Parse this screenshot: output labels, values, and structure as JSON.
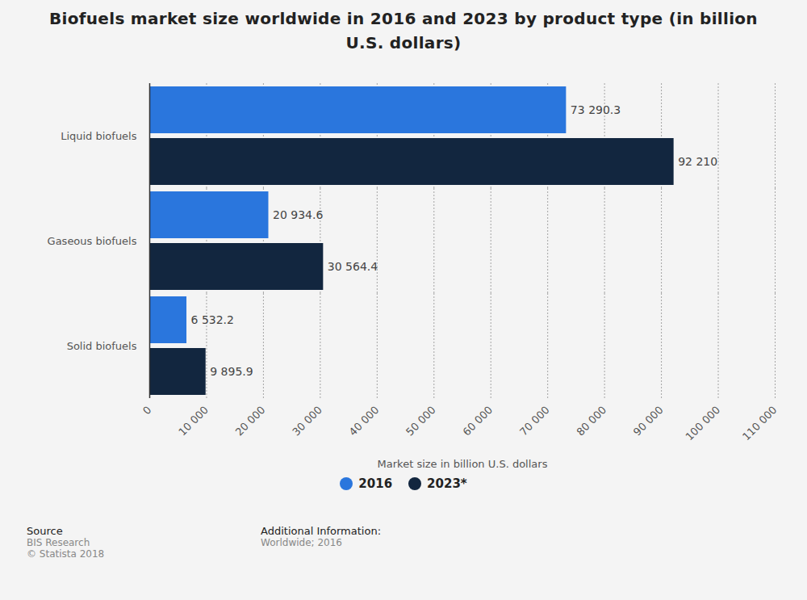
{
  "chart_data": {
    "type": "bar",
    "orientation": "horizontal",
    "title": "Biofuels market size worldwide in 2016 and 2023 by product type (in billion U.S. dollars)",
    "categories": [
      "Liquid biofuels",
      "Gaseous biofuels",
      "Solid biofuels"
    ],
    "series": [
      {
        "name": "2016",
        "color": "#2a76dd",
        "values": [
          73290.3,
          20934.6,
          6532.2
        ],
        "value_labels": [
          "73 290.3",
          "20 934.6",
          "6 532.2"
        ]
      },
      {
        "name": "2023*",
        "color": "#12263f",
        "values": [
          92210,
          30564.4,
          9895.9
        ],
        "value_labels": [
          "92 210",
          "30 564.4",
          "9 895.9"
        ]
      }
    ],
    "xlabel": "Market size in billion U.S. dollars",
    "xlim": [
      0,
      110000
    ],
    "xticks": [
      0,
      {
        "value": 10000,
        "label": "10 000"
      },
      {
        "value": 20000,
        "label": "20 000"
      },
      {
        "value": 30000,
        "label": "30 000"
      },
      {
        "value": 40000,
        "label": "40 000"
      },
      {
        "value": 50000,
        "label": "50 000"
      },
      {
        "value": 60000,
        "label": "60 000"
      },
      {
        "value": 70000,
        "label": "70 000"
      },
      {
        "value": 80000,
        "label": "80 000"
      },
      {
        "value": 90000,
        "label": "90 000"
      },
      {
        "value": 100000,
        "label": "100 000"
      },
      {
        "value": 110000,
        "label": "110 000"
      }
    ],
    "grid": true,
    "data_labels": true,
    "legend": "bottom",
    "source": {
      "heading": "Source",
      "lines": [
        "BIS Research",
        "© Statista 2018"
      ]
    },
    "additional_info": {
      "heading": "Additional Information:",
      "lines": [
        "Worldwide; 2016"
      ]
    }
  }
}
